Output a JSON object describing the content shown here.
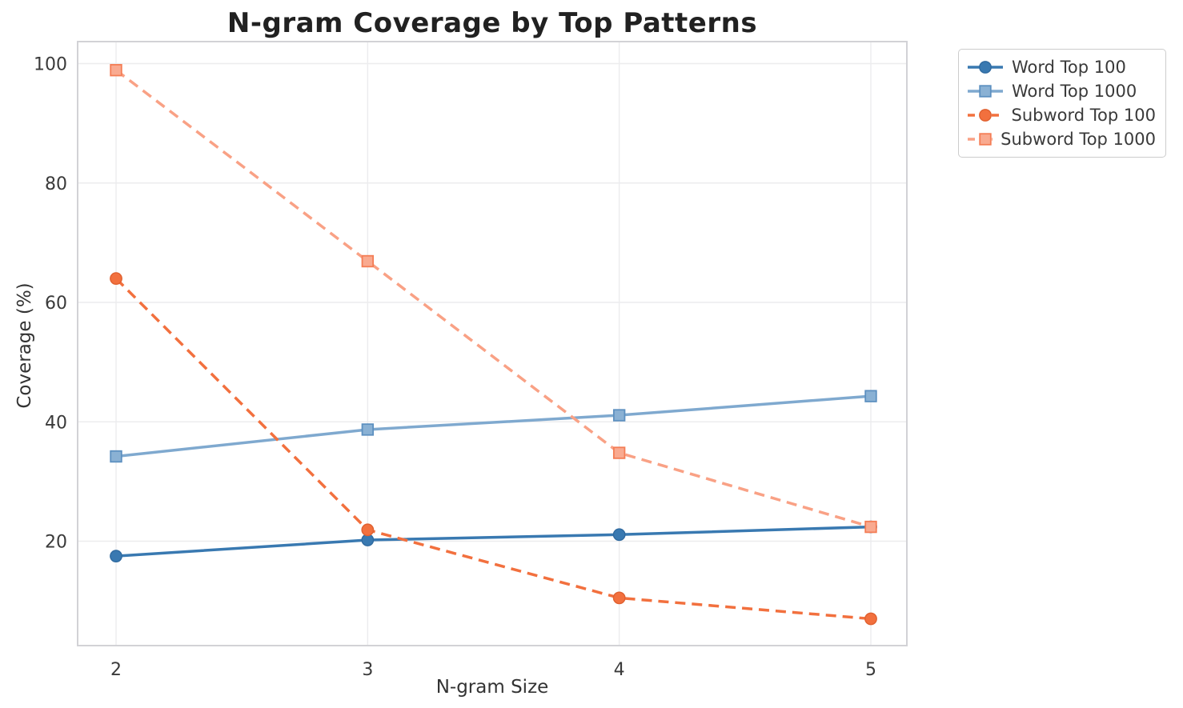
{
  "chart_data": {
    "type": "line",
    "title": "N-gram Coverage by Top Patterns",
    "xlabel": "N-gram Size",
    "ylabel": "Coverage (%)",
    "x": [
      2,
      3,
      4,
      5
    ],
    "x_tick_labels": [
      "2",
      "3",
      "4",
      "5"
    ],
    "y_ticks": [
      20,
      40,
      60,
      80,
      100
    ],
    "y_tick_labels": [
      "20",
      "40",
      "60",
      "80",
      "100"
    ],
    "xlim": [
      1.85,
      5.14
    ],
    "ylim": [
      2.5,
      103.7
    ],
    "grid": true,
    "legend_position": "outside-upper-right",
    "series": [
      {
        "name": "Word Top 100",
        "values": [
          17.5,
          20.2,
          21.1,
          22.4
        ],
        "color": "#3979b1",
        "marker": "circle",
        "marker_fill": "#3979b1",
        "marker_edge": "#2f6aa0",
        "linestyle": "solid"
      },
      {
        "name": "Word Top 1000",
        "values": [
          34.2,
          38.7,
          41.1,
          44.3
        ],
        "color": "#7fa9cf",
        "marker": "square",
        "marker_fill": "#8ab1d4",
        "marker_edge": "#5d90c0",
        "linestyle": "solid"
      },
      {
        "name": "Subword Top 100",
        "values": [
          64.0,
          21.9,
          10.5,
          7.0
        ],
        "color": "#f2703e",
        "marker": "circle",
        "marker_fill": "#f2703e",
        "marker_edge": "#e0602f",
        "linestyle": "dashed"
      },
      {
        "name": "Subword Top 1000",
        "values": [
          98.9,
          66.9,
          34.8,
          22.4
        ],
        "color": "#f9a185",
        "marker": "square",
        "marker_fill": "#f9aa90",
        "marker_edge": "#f47d55",
        "linestyle": "dashed"
      }
    ]
  },
  "style": {
    "grid_color": "#ececee",
    "border_color": "#d2d2d6",
    "tick_label_color": "#3a3a3a",
    "title_color": "#212121",
    "background": "#ffffff"
  }
}
